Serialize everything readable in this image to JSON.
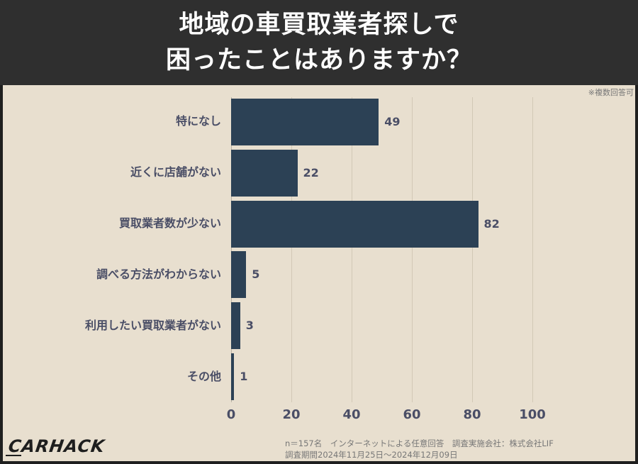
{
  "header": {
    "title_line1": "地域の車買取業者探しで",
    "title_line2": "困ったことはありますか？"
  },
  "note": "※複数回答可",
  "chart_data": {
    "type": "bar",
    "orientation": "horizontal",
    "title": "地域の車買取業者探しで困ったことはありますか？",
    "categories": [
      "特になし",
      "近くに店舗がない",
      "買取業者数が少ない",
      "調べる方法がわからない",
      "利用したい買取業者がない",
      "その他"
    ],
    "values": [
      49,
      22,
      82,
      5,
      3,
      1
    ],
    "value_labels": [
      "49",
      "22",
      "82",
      "5",
      "3",
      "1"
    ],
    "xlabel": "",
    "ylabel": "",
    "xlim": [
      0,
      100
    ],
    "x_ticks": [
      "0",
      "20",
      "40",
      "60",
      "80",
      "100"
    ],
    "grid": true,
    "bar_color": "#2c4155",
    "note": "※複数回答可"
  },
  "footer": {
    "logo": "CARHACK",
    "line1": "n＝157名　インターネットによる任意回答　調査実施会社：株式会社LIF",
    "line2": "調査期間2024年11月25日～2024年12月09日"
  },
  "colors": {
    "header_bg": "#2f2f2f",
    "panel_bg": "#e8dfcf",
    "bar": "#2c4155",
    "label": "#4a4e66"
  }
}
